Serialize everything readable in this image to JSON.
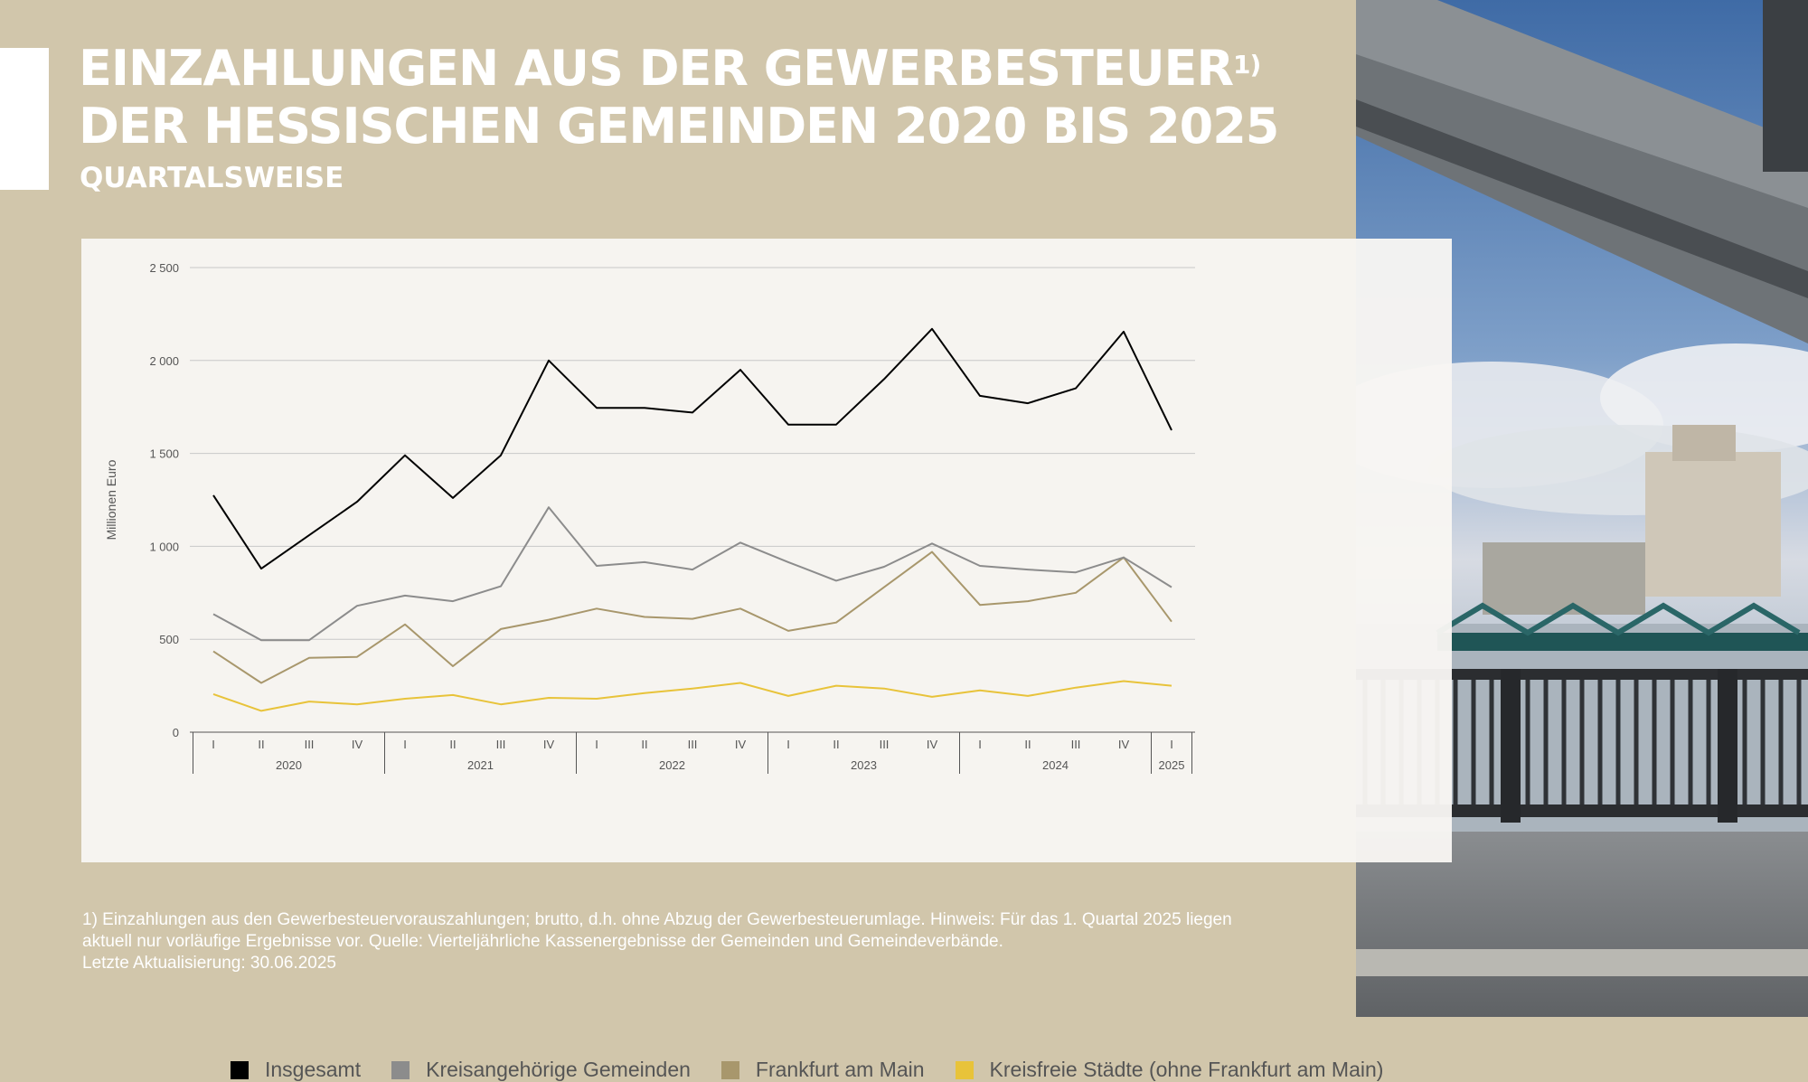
{
  "page": {
    "title_line1": "EINZAHLUNGEN AUS DER GEWERBESTEUER",
    "title_sup": "1)",
    "title_line2": "DER HESSISCHEN GEMEINDEN 2020 BIS 2025",
    "subtitle": "QUARTALSWEISE",
    "footnote_line1": "1) Einzahlungen aus den Gewerbesteuervorauszahlungen; brutto, d.h. ohne Abzug der Gewerbesteuerumlage. Hinweis: Für das 1. Quartal 2025 liegen",
    "footnote_line2": "aktuell nur vorläufige Ergebnisse vor. Quelle: Vierteljährliche Kassenergebnisse der Gemeinden und Gemeindeverbände.",
    "footnote_line3": "Letzte Aktualisierung: 30.06.2025",
    "background_color": "#d1c6ab"
  },
  "chart_data": {
    "type": "line",
    "title": "EINZAHLUNGEN AUS DER GEWERBESTEUER DER HESSISCHEN GEMEINDEN 2020 BIS 2025",
    "ylabel": "Millionen Euro",
    "xlabel": "",
    "ylim": [
      0,
      2500
    ],
    "yticks": [
      0,
      500,
      1000,
      1500,
      2000,
      2500
    ],
    "ytick_labels": [
      "0",
      "500",
      "1 000",
      "1 500",
      "2 000",
      "2 500"
    ],
    "grid": true,
    "legend_position": "bottom",
    "categories": [
      "I",
      "II",
      "III",
      "IV",
      "I",
      "II",
      "III",
      "IV",
      "I",
      "II",
      "III",
      "IV",
      "I",
      "II",
      "III",
      "IV",
      "I",
      "II",
      "III",
      "IV",
      "I"
    ],
    "years": [
      {
        "label": "2020",
        "quarters": 4
      },
      {
        "label": "2021",
        "quarters": 4
      },
      {
        "label": "2022",
        "quarters": 4
      },
      {
        "label": "2023",
        "quarters": 4
      },
      {
        "label": "2024",
        "quarters": 4
      },
      {
        "label": "2025",
        "quarters": 1
      }
    ],
    "series": [
      {
        "name": "Insgesamt",
        "color": "#000000",
        "values": [
          1275,
          880,
          1060,
          1240,
          1490,
          1260,
          1490,
          2000,
          1745,
          1745,
          1720,
          1950,
          1655,
          1655,
          1900,
          2170,
          1810,
          1770,
          1850,
          2155,
          1625
        ]
      },
      {
        "name": "Kreisangehörige Gemeinden",
        "color": "#8c8c8c",
        "values": [
          635,
          495,
          495,
          680,
          735,
          705,
          785,
          1210,
          895,
          915,
          875,
          1020,
          915,
          815,
          890,
          1015,
          895,
          875,
          860,
          940,
          780
        ]
      },
      {
        "name": "Frankfurt am Main",
        "color": "#a8976c",
        "values": [
          435,
          265,
          400,
          405,
          580,
          355,
          555,
          605,
          665,
          620,
          610,
          665,
          545,
          590,
          780,
          970,
          685,
          705,
          750,
          940,
          595
        ]
      },
      {
        "name": "Kreisfreie Städte (ohne Frankfurt am Main)",
        "color": "#e8c33a",
        "values": [
          205,
          115,
          165,
          150,
          180,
          200,
          150,
          185,
          180,
          210,
          235,
          265,
          195,
          250,
          235,
          190,
          225,
          195,
          240,
          275,
          250
        ]
      }
    ]
  }
}
